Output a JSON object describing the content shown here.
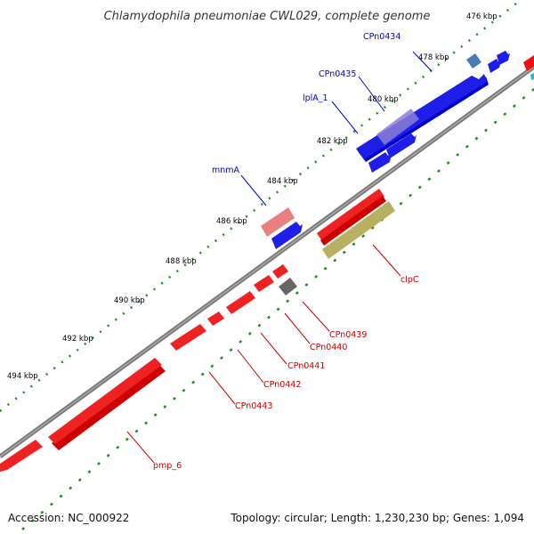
{
  "title": "Chlamydophila pneumoniae CWL029, complete genome",
  "footer": {
    "accession": "Accession: NC_000922",
    "topology": "Topology: circular; Length: 1,230,230 bp; Genes: 1,094"
  },
  "ticks": [
    "476 kbp",
    "478 kbp",
    "480 kbp",
    "482 kbp",
    "484 kbp",
    "486 kbp",
    "488 kbp",
    "490 kbp",
    "492 kbp",
    "494 kbp"
  ],
  "genes": {
    "forward": [
      {
        "id": "f1",
        "label": "CPn0434",
        "name": "CPn0434"
      },
      {
        "id": "f2",
        "label": "CPn0435",
        "name": "CPn0435"
      },
      {
        "id": "f3",
        "label": "lplA_1",
        "name": "lplA_1"
      },
      {
        "id": "f4",
        "label": "mnmA",
        "name": "mnmA"
      }
    ],
    "reverse": [
      {
        "id": "r1",
        "label": "clpC",
        "name": "clpC"
      },
      {
        "id": "r2",
        "label": "CPn0439",
        "name": "CPn0439"
      },
      {
        "id": "r3",
        "label": "CPn0440",
        "name": "CPn0440"
      },
      {
        "id": "r4",
        "label": "CPn0441",
        "name": "CPn0441"
      },
      {
        "id": "r5",
        "label": "CPn0442",
        "name": "CPn0442"
      },
      {
        "id": "r6",
        "label": "CPn0443",
        "name": "CPn0443"
      },
      {
        "id": "r7",
        "label": "pmp_6",
        "name": "pmp_6"
      }
    ]
  },
  "colors": {
    "forward_strand": "#0000ee",
    "reverse_strand": "#ee0000",
    "forward_label": "#0000cc",
    "reverse_label": "#cc0000",
    "backbone": "#888888",
    "tick": "#228b22",
    "feature_purple": "#8a7ed6",
    "feature_pink": "#e88080",
    "feature_olive": "#b8b060",
    "feature_gray": "#666666",
    "feature_steel": "#4a7bb8"
  }
}
